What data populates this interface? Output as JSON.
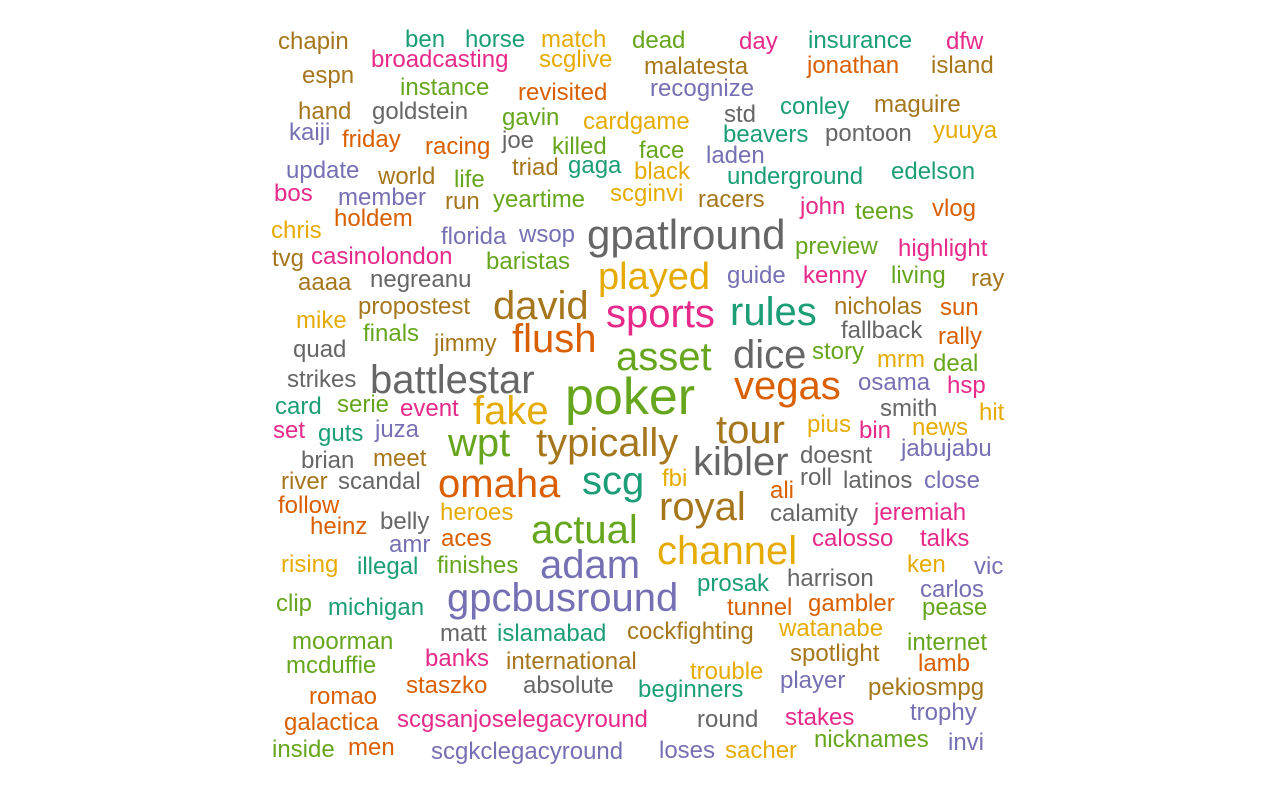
{
  "palette": [
    "#1b9e77",
    "#d95f02",
    "#7570b3",
    "#e7298a",
    "#66a61e",
    "#e6ab02",
    "#a6761d",
    "#666666"
  ],
  "words": [
    "chapin",
    "ben",
    "horse",
    "match",
    "dead",
    "day",
    "insurance",
    "dfw",
    "espn",
    "broadcasting",
    "scglive",
    "malatesta",
    "jonathan",
    "island",
    "instance",
    "revisited",
    "recognize",
    "hand",
    "goldstein",
    "gavin",
    "std",
    "conley",
    "maguire",
    "kaiji",
    "friday",
    "joe",
    "cardgame",
    "beavers",
    "pontoon",
    "yuuya",
    "racing",
    "killed",
    "face",
    "laden",
    "update",
    "triad",
    "gaga",
    "world",
    "life",
    "black",
    "underground",
    "edelson",
    "bos",
    "member",
    "run",
    "yeartime",
    "scginvi",
    "racers",
    "john",
    "teens",
    "vlog",
    "holdem",
    "chris",
    "florida",
    "wsop",
    "gpatlround",
    "preview",
    "highlight",
    "tvg",
    "casinolondon",
    "baristas",
    "played",
    "guide",
    "kenny",
    "living",
    "ray",
    "aaaa",
    "negreanu",
    "david",
    "propostest",
    "sports",
    "rules",
    "nicholas",
    "sun",
    "mike",
    "flush",
    "fallback",
    "finals",
    "jimmy",
    "rally",
    "quad",
    "asset",
    "dice",
    "story",
    "mrm",
    "deal",
    "strikes",
    "battlestar",
    "poker",
    "vegas",
    "osama",
    "hsp",
    "card",
    "serie",
    "event",
    "fake",
    "smith",
    "hit",
    "set",
    "guts",
    "juza",
    "pius",
    "bin",
    "news",
    "wpt",
    "typically",
    "tour",
    "jabujabu",
    "brian",
    "meet",
    "doesnt",
    "kibler",
    "river",
    "scandal",
    "omaha",
    "scg",
    "fbi",
    "roll",
    "latinos",
    "close",
    "follow",
    "ali",
    "royal",
    "heinz",
    "belly",
    "heroes",
    "calamity",
    "jeremiah",
    "actual",
    "amr",
    "aces",
    "calosso",
    "talks",
    "channel",
    "rising",
    "illegal",
    "finishes",
    "adam",
    "ken",
    "vic",
    "prosak",
    "harrison",
    "carlos",
    "clip",
    "michigan",
    "gpcbusround",
    "tunnel",
    "gambler",
    "pease",
    "moorman",
    "matt",
    "islamabad",
    "cockfighting",
    "watanabe",
    "internet",
    "mcduffie",
    "banks",
    "international",
    "spotlight",
    "lamb",
    "trouble",
    "romao",
    "staszko",
    "absolute",
    "beginners",
    "player",
    "pekiosmpg",
    "galactica",
    "scgsanjoselegacyround",
    "round",
    "stakes",
    "trophy",
    "inside",
    "men",
    "scgkclegacyround",
    "loses",
    "sacher",
    "nicknames",
    "invi"
  ]
}
